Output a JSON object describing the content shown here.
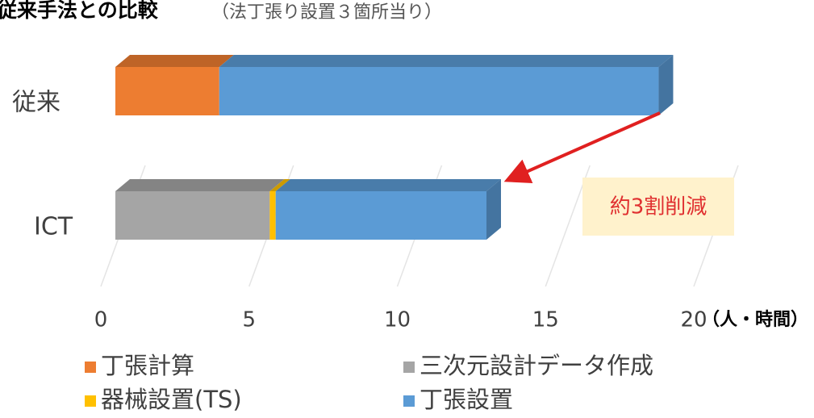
{
  "chart_data": {
    "type": "bar",
    "orientation": "horizontal",
    "stacked": true,
    "title": "従来手法との比較",
    "subtitle": "（法丁張り設置３箇所当り）",
    "categories": [
      "従来",
      "ICT"
    ],
    "series": [
      {
        "name": "丁張計算",
        "color": "#ed7d31",
        "values": [
          3.5,
          0
        ]
      },
      {
        "name": "三次元設計データ作成",
        "color": "#a5a5a5",
        "values": [
          0,
          5.2
        ]
      },
      {
        "name": "器械設置(TS)",
        "color": "#ffc000",
        "values": [
          0,
          0.2
        ]
      },
      {
        "name": "丁張設置",
        "color": "#5b9bd5",
        "values": [
          14.8,
          7.1
        ]
      }
    ],
    "xlim": [
      0,
      20
    ],
    "xticks": [
      0,
      5,
      10,
      15,
      20
    ],
    "xlabel": "（人・時間）",
    "annotation": "約3割削減",
    "grid": true
  }
}
